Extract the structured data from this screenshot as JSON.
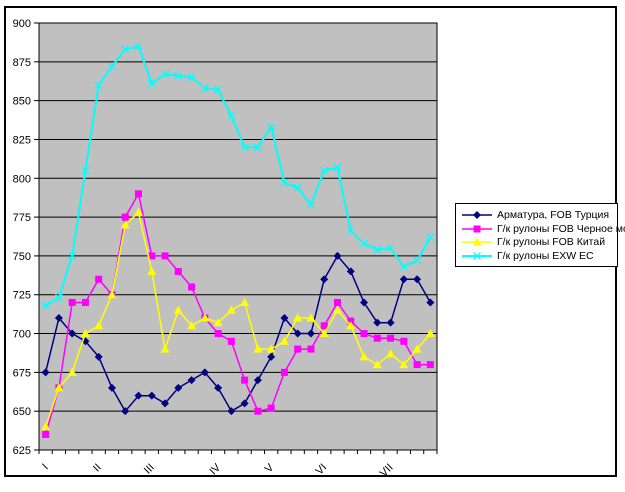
{
  "figure": {
    "background": "#FFFFFF",
    "border_color": "#000000"
  },
  "chart_data": {
    "type": "line",
    "title": "",
    "xlabel": "",
    "ylabel": "",
    "plot_bg": "#C0C0C0",
    "grid": "on",
    "gridline_color": "#000000",
    "legend_position": "right",
    "ylim": [
      625,
      900
    ],
    "y_ticks": [
      625,
      650,
      675,
      700,
      725,
      750,
      775,
      800,
      825,
      850,
      875,
      900
    ],
    "n_points": 30,
    "x_tick_labels": [
      "I",
      "II",
      "III",
      "IV",
      "V",
      "VI",
      "VII"
    ],
    "x_label_indices": [
      0,
      4,
      8,
      13,
      17,
      21,
      26
    ],
    "series": [
      {
        "name": "Арматура, FOB Турция",
        "color": "#000080",
        "marker": "diamond",
        "values": [
          675,
          710,
          700,
          695,
          685,
          665,
          650,
          660,
          660,
          655,
          665,
          670,
          675,
          665,
          650,
          655,
          670,
          685,
          710,
          700,
          700,
          735,
          750,
          740,
          720,
          707,
          707,
          735,
          735,
          720
        ]
      },
      {
        "name": "Г/к рулоны FOB Черное море",
        "color": "#FF00FF",
        "marker": "square",
        "values": [
          635,
          665,
          720,
          720,
          735,
          725,
          775,
          790,
          750,
          750,
          740,
          730,
          710,
          700,
          695,
          670,
          650,
          652,
          675,
          690,
          690,
          705,
          720,
          708,
          700,
          697,
          697,
          695,
          680,
          680
        ]
      },
      {
        "name": "Г/к рулоны FOB Китай",
        "color": "#FFFF00",
        "marker": "triangle",
        "values": [
          640,
          665,
          675,
          700,
          705,
          725,
          770,
          778,
          740,
          690,
          715,
          705,
          710,
          707,
          715,
          720,
          690,
          690,
          695,
          710,
          710,
          700,
          715,
          705,
          685,
          680,
          687,
          680,
          690,
          700
        ]
      },
      {
        "name": "Г/к рулоны EXW ЕС",
        "color": "#00FFFF",
        "marker": "x",
        "values": [
          718,
          723,
          750,
          805,
          860,
          872,
          883,
          885,
          861,
          867,
          866,
          865,
          858,
          857,
          840,
          820,
          820,
          833,
          797,
          794,
          783,
          805,
          807,
          766,
          758,
          754,
          755,
          743,
          747,
          762
        ]
      }
    ]
  }
}
